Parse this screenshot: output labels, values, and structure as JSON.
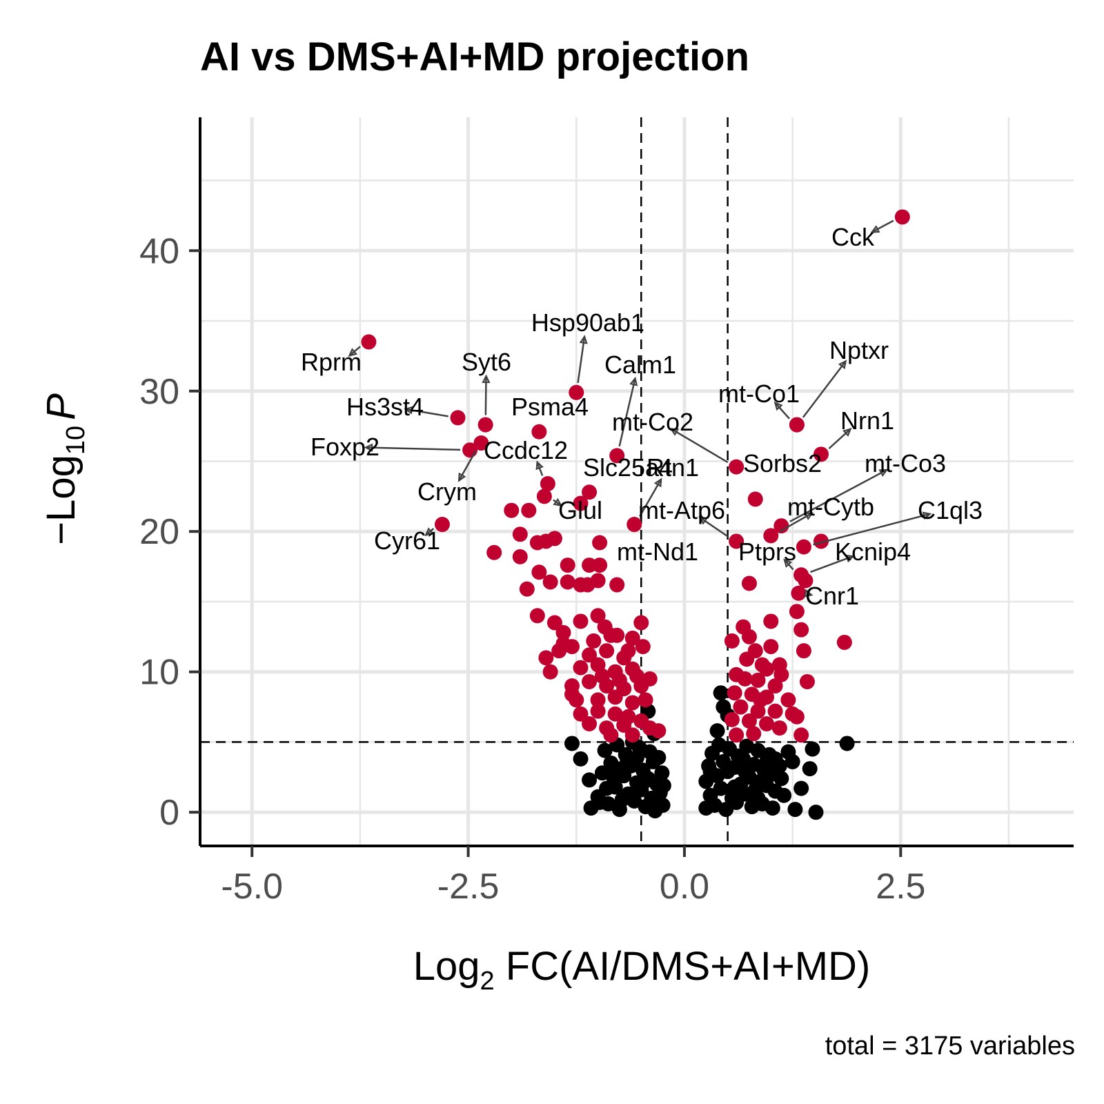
{
  "chart_data": {
    "type": "scatter",
    "title": "AI vs DMS+AI+MD projection",
    "xlabel_prefix": "Log",
    "xlabel_sub": "2",
    "xlabel_suffix": " FC(AI/DMS+AI+MD)",
    "ylabel_prefix": "−Log",
    "ylabel_sub": "10",
    "ylabel_suffix": "P",
    "caption": "total = 3175 variables",
    "xlim": [
      -5.6,
      4.5
    ],
    "ylim": [
      -2.4,
      49.5
    ],
    "xticks": [
      -5.0,
      -2.5,
      0.0,
      2.5
    ],
    "xtick_labels": [
      "-5.0",
      "-2.5",
      "0.0",
      "2.5"
    ],
    "yticks": [
      0,
      10,
      20,
      30,
      40
    ],
    "ytick_labels": [
      "0",
      "10",
      "20",
      "30",
      "40"
    ],
    "fc_cutoff": 0.5,
    "p_cutoff": 5,
    "grid": true,
    "colors": {
      "significant": "#C0002F",
      "nonsignificant": "#000000",
      "grid": "#e6e6e6",
      "cutoff_line": "#000000",
      "arrow": "#404040"
    },
    "labeled_genes": [
      {
        "gene": "Cck",
        "x": 2.52,
        "y": 42.4
      },
      {
        "gene": "Rprm",
        "x": -3.65,
        "y": 33.5
      },
      {
        "gene": "Hsp90ab1",
        "x": -1.25,
        "y": 29.9
      },
      {
        "gene": "Syt6",
        "x": -2.3,
        "y": 27.6
      },
      {
        "gene": "Hs3st4",
        "x": -2.62,
        "y": 28.1
      },
      {
        "gene": "Foxp2",
        "x": -2.48,
        "y": 25.8
      },
      {
        "gene": "Crym",
        "x": -2.35,
        "y": 26.3
      },
      {
        "gene": "Psma4",
        "x": -1.68,
        "y": 27.1
      },
      {
        "gene": "Calm1",
        "x": -0.78,
        "y": 25.4
      },
      {
        "gene": "Ccdc12",
        "x": -1.58,
        "y": 23.4
      },
      {
        "gene": "Glul",
        "x": -1.62,
        "y": 22.5
      },
      {
        "gene": "Slc25a4",
        "x": -1.1,
        "y": 22.8
      },
      {
        "gene": "Rtn1",
        "x": -0.58,
        "y": 20.5
      },
      {
        "gene": "Cyr61",
        "x": -2.8,
        "y": 20.5
      },
      {
        "gene": "mt-Co2",
        "x": 0.6,
        "y": 24.6
      },
      {
        "gene": "mt-Co1",
        "x": 1.3,
        "y": 27.6
      },
      {
        "gene": "Nptxr",
        "x": 1.3,
        "y": 27.6
      },
      {
        "gene": "Nrn1",
        "x": 1.58,
        "y": 25.5
      },
      {
        "gene": "Sorbs2",
        "x": 0.82,
        "y": 22.3
      },
      {
        "gene": "mt-Co3",
        "x": 1.12,
        "y": 20.4
      },
      {
        "gene": "mt-Atp6",
        "x": 0.6,
        "y": 19.3
      },
      {
        "gene": "mt-Cytb",
        "x": 1.0,
        "y": 19.7
      },
      {
        "gene": "C1ql3",
        "x": 1.38,
        "y": 18.9
      },
      {
        "gene": "mt-Nd1",
        "x": 0.75,
        "y": 16.3
      },
      {
        "gene": "Ptprs",
        "x": 1.35,
        "y": 16.9
      },
      {
        "gene": "Kcnip4",
        "x": 1.35,
        "y": 16.9
      },
      {
        "gene": "Cnr1",
        "x": 1.32,
        "y": 15.6
      }
    ],
    "significant_points": [
      [
        -1.7,
        19.2
      ],
      [
        -1.5,
        19.5
      ],
      [
        -1.1,
        17.6
      ],
      [
        -0.98,
        17.6
      ],
      [
        -0.78,
        16.2
      ],
      [
        -1.9,
        18.2
      ],
      [
        -2.2,
        18.5
      ],
      [
        -1.82,
        15.9
      ],
      [
        -1.55,
        16.4
      ],
      [
        -1.35,
        16.4
      ],
      [
        -1.2,
        16.2
      ],
      [
        -1.0,
        16.5
      ],
      [
        -1.12,
        16.2
      ],
      [
        -1.68,
        17.1
      ],
      [
        -1.35,
        17.6
      ],
      [
        -2.0,
        21.5
      ],
      [
        -1.8,
        21.5
      ],
      [
        -1.9,
        19.8
      ],
      [
        -1.6,
        19.3
      ],
      [
        -1.2,
        22.0
      ],
      [
        -0.98,
        19.2
      ],
      [
        -1.7,
        14.0
      ],
      [
        -1.5,
        13.5
      ],
      [
        -1.4,
        12.8
      ],
      [
        -1.2,
        13.6
      ],
      [
        -1.0,
        14.0
      ],
      [
        -0.92,
        13.2
      ],
      [
        -0.78,
        12.6
      ],
      [
        -0.6,
        12.4
      ],
      [
        -0.5,
        13.5
      ],
      [
        -1.3,
        11.8
      ],
      [
        -1.1,
        11.2
      ],
      [
        -0.9,
        11.5
      ],
      [
        -0.7,
        11.0
      ],
      [
        -1.45,
        11.5
      ],
      [
        -1.6,
        11.0
      ],
      [
        -1.55,
        10.0
      ],
      [
        -1.2,
        10.3
      ],
      [
        -1.0,
        10.5
      ],
      [
        -0.8,
        10.0
      ],
      [
        -0.6,
        10.2
      ],
      [
        -1.3,
        9.0
      ],
      [
        -1.1,
        9.3
      ],
      [
        -0.9,
        9.0
      ],
      [
        -0.7,
        8.8
      ],
      [
        -0.5,
        9.0
      ],
      [
        -0.45,
        8.0
      ],
      [
        -1.25,
        8.0
      ],
      [
        -1.0,
        8.0
      ],
      [
        -0.8,
        8.2
      ],
      [
        -0.6,
        7.8
      ],
      [
        -1.2,
        7.0
      ],
      [
        -1.0,
        7.2
      ],
      [
        -0.8,
        7.0
      ],
      [
        -0.65,
        6.8
      ],
      [
        -0.5,
        6.5
      ],
      [
        -0.9,
        6.0
      ],
      [
        -0.7,
        6.2
      ],
      [
        -0.4,
        6.0
      ],
      [
        -0.3,
        5.8
      ],
      [
        -0.6,
        5.5
      ],
      [
        -0.85,
        5.5
      ],
      [
        -1.1,
        6.3
      ],
      [
        -1.3,
        8.4
      ],
      [
        -0.95,
        9.7
      ],
      [
        -0.75,
        9.4
      ],
      [
        -0.55,
        9.7
      ],
      [
        -0.4,
        9.5
      ],
      [
        -1.05,
        12.2
      ],
      [
        -0.85,
        12.6
      ],
      [
        -0.65,
        11.5
      ],
      [
        -1.4,
        12.0
      ],
      [
        -0.48,
        11.8
      ],
      [
        0.55,
        12.2
      ],
      [
        0.75,
        12.5
      ],
      [
        0.82,
        11.5
      ],
      [
        1.0,
        11.8
      ],
      [
        1.1,
        10.5
      ],
      [
        0.95,
        10.2
      ],
      [
        0.6,
        9.8
      ],
      [
        0.7,
        9.5
      ],
      [
        0.85,
        9.4
      ],
      [
        1.05,
        9.0
      ],
      [
        0.58,
        8.5
      ],
      [
        0.78,
        8.4
      ],
      [
        0.95,
        8.2
      ],
      [
        1.2,
        8.0
      ],
      [
        0.65,
        7.5
      ],
      [
        0.85,
        7.2
      ],
      [
        1.05,
        7.2
      ],
      [
        1.25,
        7.0
      ],
      [
        0.55,
        6.6
      ],
      [
        0.75,
        6.5
      ],
      [
        0.95,
        6.3
      ],
      [
        1.1,
        6.0
      ],
      [
        1.35,
        5.5
      ],
      [
        0.6,
        5.5
      ],
      [
        0.8,
        5.6
      ],
      [
        0.68,
        13.2
      ],
      [
        1.0,
        13.6
      ],
      [
        1.3,
        14.3
      ],
      [
        1.35,
        13.0
      ],
      [
        1.85,
        12.1
      ],
      [
        1.38,
        11.5
      ],
      [
        1.42,
        9.3
      ],
      [
        1.3,
        6.8
      ],
      [
        1.58,
        19.3
      ],
      [
        1.4,
        16.5
      ],
      [
        0.72,
        10.9
      ],
      [
        0.9,
        10.5
      ],
      [
        1.12,
        9.8
      ],
      [
        0.88,
        8.0
      ]
    ],
    "nonsignificant_points": [
      [
        -1.3,
        4.9
      ],
      [
        -1.2,
        3.8
      ],
      [
        -1.1,
        2.3
      ],
      [
        -1.08,
        0.3
      ],
      [
        -1.0,
        1.1
      ],
      [
        -0.92,
        4.4
      ],
      [
        -0.95,
        2.8
      ],
      [
        -0.88,
        0.6
      ],
      [
        -0.85,
        3.5
      ],
      [
        -0.8,
        1.8
      ],
      [
        -0.78,
        4.8
      ],
      [
        -0.75,
        0.2
      ],
      [
        -0.7,
        2.6
      ],
      [
        -0.68,
        4.1
      ],
      [
        -0.65,
        1.3
      ],
      [
        -0.62,
        3.3
      ],
      [
        -0.58,
        0.8
      ],
      [
        -0.55,
        2.1
      ],
      [
        -0.52,
        4.6
      ],
      [
        -0.5,
        1.6
      ],
      [
        -0.48,
        3.0
      ],
      [
        -0.45,
        0.4
      ],
      [
        -0.42,
        2.4
      ],
      [
        -0.4,
        4.3
      ],
      [
        -0.38,
        1.0
      ],
      [
        -0.36,
        3.6
      ],
      [
        -0.34,
        0.1
      ],
      [
        -0.32,
        2.0
      ],
      [
        -0.3,
        3.9
      ],
      [
        -0.28,
        1.4
      ],
      [
        -0.26,
        2.8
      ],
      [
        -0.25,
        0.5
      ],
      [
        -0.24,
        1.9
      ],
      [
        -0.42,
        7.2
      ],
      [
        -0.35,
        5.6
      ],
      [
        -0.6,
        5.0
      ],
      [
        -0.72,
        0.9
      ],
      [
        -0.82,
        2.5
      ],
      [
        -0.9,
        1.7
      ],
      [
        -0.66,
        3.7
      ],
      [
        -0.46,
        2.2
      ],
      [
        -0.3,
        1.1
      ],
      [
        -0.55,
        3.9
      ],
      [
        -0.78,
        3.1
      ],
      [
        -0.98,
        0.7
      ],
      [
        0.25,
        0.3
      ],
      [
        0.25,
        2.2
      ],
      [
        0.28,
        3.3
      ],
      [
        0.3,
        1.2
      ],
      [
        0.32,
        4.2
      ],
      [
        0.35,
        0.5
      ],
      [
        0.38,
        2.6
      ],
      [
        0.4,
        4.8
      ],
      [
        0.42,
        1.7
      ],
      [
        0.45,
        3.6
      ],
      [
        0.48,
        0.2
      ],
      [
        0.5,
        2.9
      ],
      [
        0.52,
        4.5
      ],
      [
        0.55,
        1.0
      ],
      [
        0.58,
        3.2
      ],
      [
        0.6,
        0.7
      ],
      [
        0.62,
        4.0
      ],
      [
        0.65,
        2.0
      ],
      [
        0.68,
        3.8
      ],
      [
        0.7,
        1.3
      ],
      [
        0.72,
        4.7
      ],
      [
        0.75,
        2.5
      ],
      [
        0.78,
        0.4
      ],
      [
        0.8,
        3.4
      ],
      [
        0.82,
        1.6
      ],
      [
        0.85,
        4.4
      ],
      [
        0.88,
        2.2
      ],
      [
        0.9,
        0.6
      ],
      [
        0.92,
        3.0
      ],
      [
        0.95,
        1.9
      ],
      [
        0.98,
        4.1
      ],
      [
        1.0,
        2.7
      ],
      [
        1.02,
        0.3
      ],
      [
        1.05,
        1.5
      ],
      [
        1.1,
        3.3
      ],
      [
        1.12,
        2.4
      ],
      [
        1.15,
        1.2
      ],
      [
        1.2,
        4.3
      ],
      [
        1.25,
        3.6
      ],
      [
        1.28,
        0.2
      ],
      [
        1.35,
        1.7
      ],
      [
        1.48,
        4.5
      ],
      [
        1.52,
        0.0
      ],
      [
        1.45,
        3.1
      ],
      [
        1.88,
        4.9
      ],
      [
        0.42,
        8.5
      ],
      [
        0.45,
        7.5
      ],
      [
        0.5,
        6.9
      ],
      [
        0.38,
        5.8
      ],
      [
        1.05,
        3.8
      ],
      [
        0.3,
        2.9
      ],
      [
        0.58,
        1.8
      ],
      [
        0.7,
        2.9
      ],
      [
        0.85,
        1.0
      ],
      [
        0.95,
        3.6
      ]
    ]
  }
}
